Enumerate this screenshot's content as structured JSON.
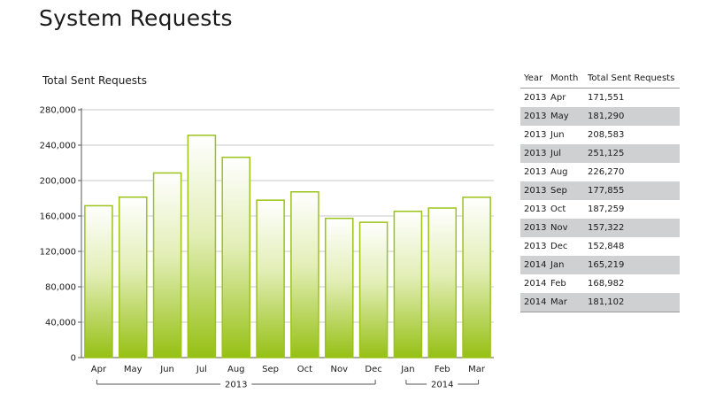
{
  "page": {
    "title": "System Requests"
  },
  "chart_data": {
    "type": "bar",
    "title": "Total Sent Requests",
    "categories": [
      "Apr",
      "May",
      "Jun",
      "Jul",
      "Aug",
      "Sep",
      "Oct",
      "Nov",
      "Dec",
      "Jan",
      "Feb",
      "Mar"
    ],
    "values": [
      171551,
      181290,
      208583,
      251125,
      226270,
      177855,
      187259,
      157322,
      152848,
      165219,
      168982,
      181102
    ],
    "year_groups": [
      {
        "label": "2013",
        "from": 0,
        "to": 8
      },
      {
        "label": "2014",
        "from": 9,
        "to": 11
      }
    ],
    "ylim": [
      0,
      280000
    ],
    "yticks": [
      0,
      40000,
      80000,
      120000,
      160000,
      200000,
      240000,
      280000
    ],
    "ytick_labels": [
      "0",
      "40,000",
      "80,000",
      "120,000",
      "160,000",
      "200,000",
      "240,000",
      "280,000"
    ],
    "grid": true,
    "bar_color": "#9cc31a",
    "xlabel": "",
    "ylabel": ""
  },
  "table": {
    "headers": [
      "Year",
      "Month",
      "Total Sent Requests"
    ],
    "rows": [
      [
        "2013",
        "Apr",
        "171,551"
      ],
      [
        "2013",
        "May",
        "181,290"
      ],
      [
        "2013",
        "Jun",
        "208,583"
      ],
      [
        "2013",
        "Jul",
        "251,125"
      ],
      [
        "2013",
        "Aug",
        "226,270"
      ],
      [
        "2013",
        "Sep",
        "177,855"
      ],
      [
        "2013",
        "Oct",
        "187,259"
      ],
      [
        "2013",
        "Nov",
        "157,322"
      ],
      [
        "2013",
        "Dec",
        "152,848"
      ],
      [
        "2014",
        "Jan",
        "165,219"
      ],
      [
        "2014",
        "Feb",
        "168,982"
      ],
      [
        "2014",
        "Mar",
        "181,102"
      ]
    ]
  }
}
